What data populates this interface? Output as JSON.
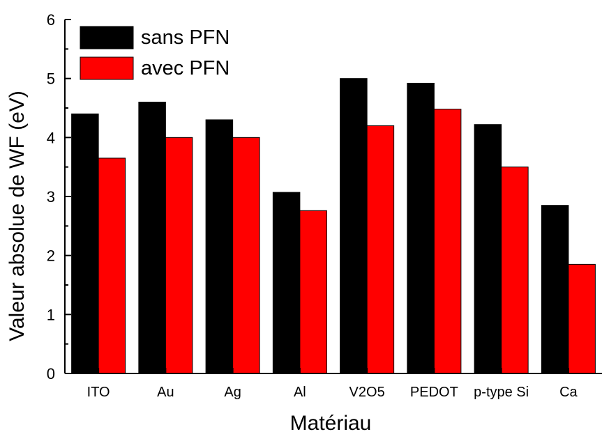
{
  "chart_data": {
    "type": "bar",
    "title": "",
    "xlabel": "Matériau",
    "ylabel": "Valeur absolue de WF (eV)",
    "ylim": [
      0,
      6
    ],
    "yticks": [
      0,
      1,
      2,
      3,
      4,
      5,
      6
    ],
    "grid": false,
    "legend_position": "top-left",
    "categories": [
      "ITO",
      "Au",
      "Ag",
      "Al",
      "V2O5",
      "PEDOT",
      "p-type Si",
      "Ca"
    ],
    "series": [
      {
        "name": "sans PFN",
        "color": "#000000",
        "values": [
          4.4,
          4.6,
          4.3,
          3.07,
          5.0,
          4.92,
          4.22,
          2.85
        ]
      },
      {
        "name": "avec PFN",
        "color": "#ff0000",
        "values": [
          3.65,
          4.0,
          4.0,
          2.76,
          4.2,
          4.48,
          3.5,
          1.85
        ]
      }
    ]
  }
}
